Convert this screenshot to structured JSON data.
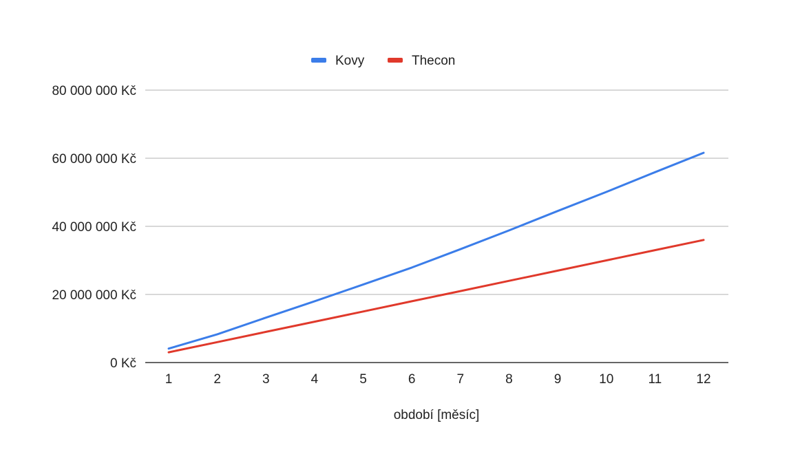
{
  "chart_data": {
    "type": "line",
    "title": "",
    "xlabel": "období [měsíc]",
    "ylabel": "",
    "x": [
      1,
      2,
      3,
      4,
      5,
      6,
      7,
      8,
      9,
      10,
      11,
      12
    ],
    "x_tick_labels": [
      "1",
      "2",
      "3",
      "4",
      "5",
      "6",
      "7",
      "8",
      "9",
      "10",
      "11",
      "12"
    ],
    "ylim": [
      0,
      80000000
    ],
    "y_ticks": [
      0,
      20000000,
      40000000,
      60000000,
      80000000
    ],
    "y_tick_labels": [
      "0 Kč",
      "20 000 000 Kč",
      "40 000 000 Kč",
      "60 000 000 Kč",
      "80 000 000 Kč"
    ],
    "grid": true,
    "legend_position": "top",
    "series": [
      {
        "name": "Kovy",
        "color": "#3b7de9",
        "values": [
          4100000,
          8300000,
          13200000,
          18000000,
          22900000,
          27900000,
          33300000,
          38800000,
          44500000,
          50100000,
          55900000,
          61600000
        ]
      },
      {
        "name": "Thecon",
        "color": "#e0392b",
        "values": [
          3000000,
          6000000,
          9000000,
          12000000,
          15000000,
          18000000,
          21000000,
          24000000,
          27000000,
          30000000,
          33000000,
          36000000
        ]
      }
    ]
  }
}
